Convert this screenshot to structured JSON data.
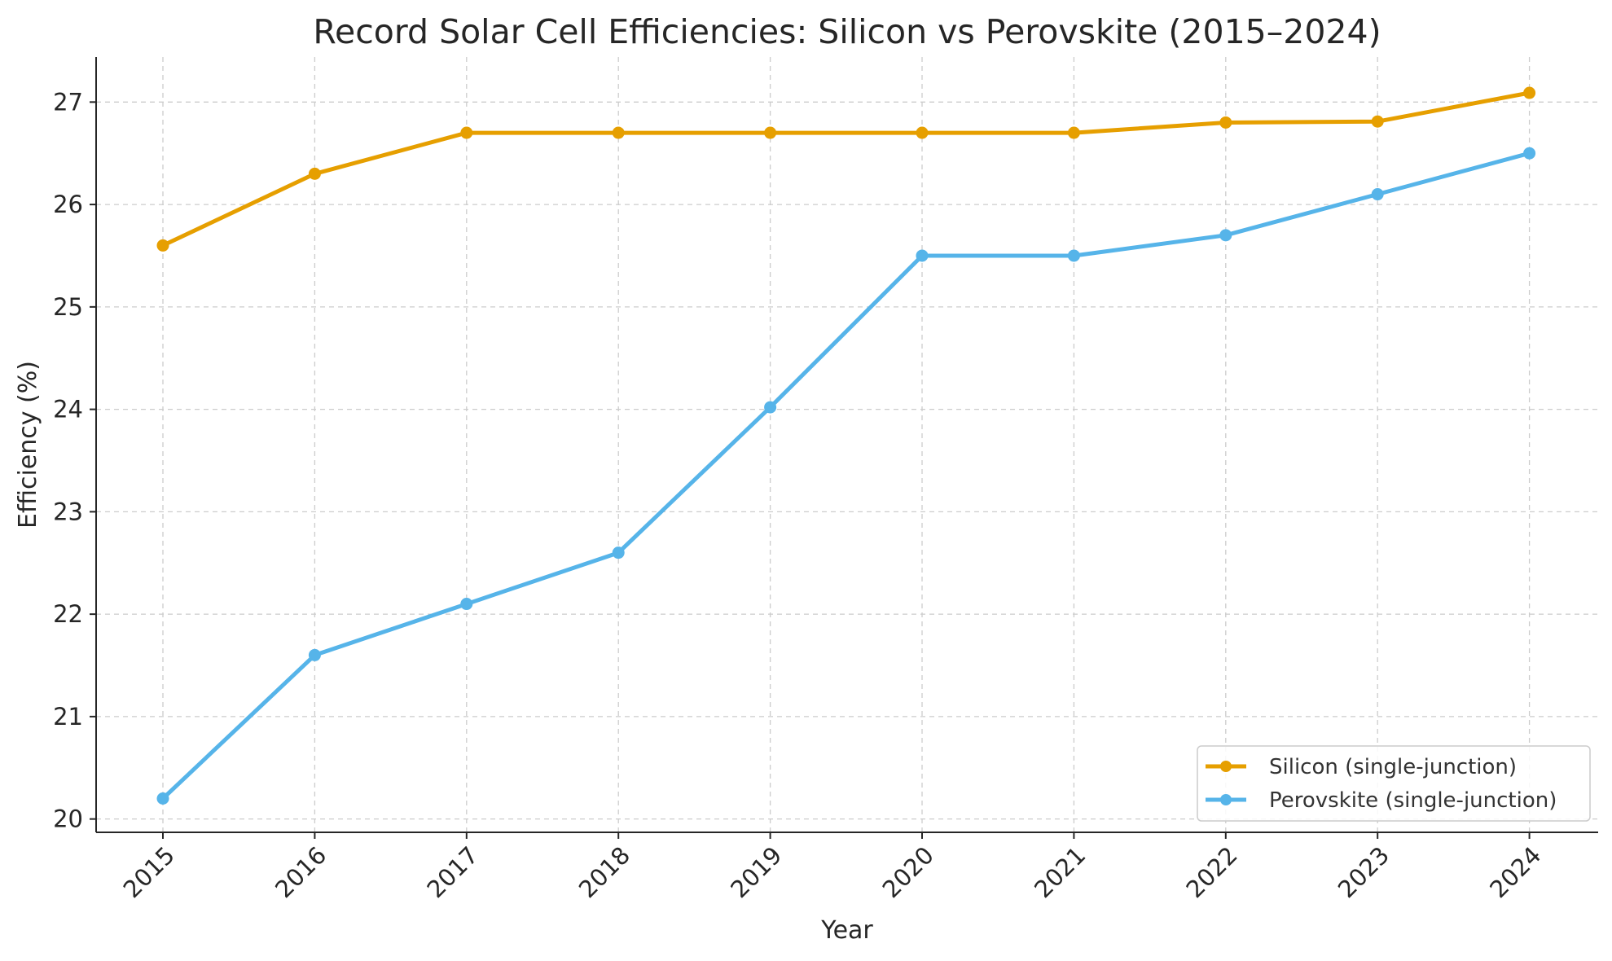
{
  "chart_data": {
    "type": "line",
    "title": "Record Solar Cell Efficiencies: Silicon vs Perovskite (2015–2024)",
    "xlabel": "Year",
    "ylabel": "Efficiency (%)",
    "x": [
      "2015",
      "2016",
      "2017",
      "2018",
      "2019",
      "2020",
      "2021",
      "2022",
      "2023",
      "2024"
    ],
    "yticks": [
      "20",
      "21",
      "22",
      "23",
      "24",
      "25",
      "26",
      "27"
    ],
    "ylim": [
      19.87,
      27.44
    ],
    "grid": true,
    "legend_position": "bottom-right",
    "series": [
      {
        "name": "Silicon (single-junction)",
        "color": "#E69F00",
        "values": [
          25.6,
          26.3,
          26.7,
          26.7,
          26.7,
          26.7,
          26.7,
          26.8,
          26.81,
          27.09
        ]
      },
      {
        "name": "Perovskite (single-junction)",
        "color": "#56B4E9",
        "values": [
          20.2,
          21.6,
          22.1,
          22.6,
          24.02,
          25.5,
          25.5,
          25.7,
          26.1,
          26.5
        ]
      }
    ]
  }
}
